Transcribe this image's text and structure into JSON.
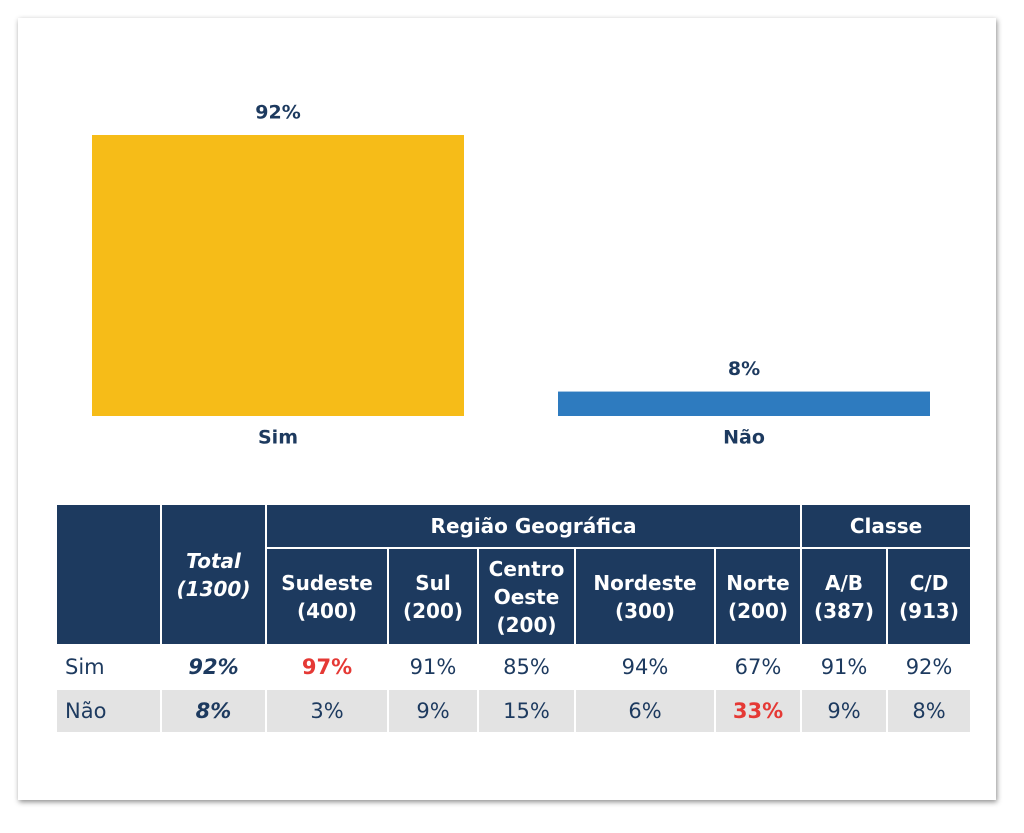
{
  "chart_data": {
    "type": "bar",
    "categories": [
      "Sim",
      "Não"
    ],
    "values": [
      92,
      8
    ],
    "value_labels": [
      "92%",
      "8%"
    ],
    "colors": [
      "#f6bc18",
      "#2e7bbf"
    ]
  },
  "table": {
    "header": {
      "blank": "",
      "total": [
        "Total",
        "(1300)"
      ],
      "region_group": "Região Geográfica",
      "class_group": "Classe",
      "columns": [
        [
          "Sudeste",
          "(400)"
        ],
        [
          "Sul",
          "(200)"
        ],
        [
          "Centro Oeste",
          "(200)"
        ],
        [
          "Nordeste",
          "(300)"
        ],
        [
          "Norte",
          "(200)"
        ],
        [
          "A/B",
          "(387)"
        ],
        [
          "C/D",
          "(913)"
        ]
      ]
    },
    "rows": [
      [
        "Sim",
        "92%",
        "97%",
        "91%",
        "85%",
        "94%",
        "67%",
        "91%",
        "92%"
      ],
      [
        "Não",
        "8%",
        "3%",
        "9%",
        "15%",
        "6%",
        "33%",
        "9%",
        "8%"
      ]
    ]
  }
}
